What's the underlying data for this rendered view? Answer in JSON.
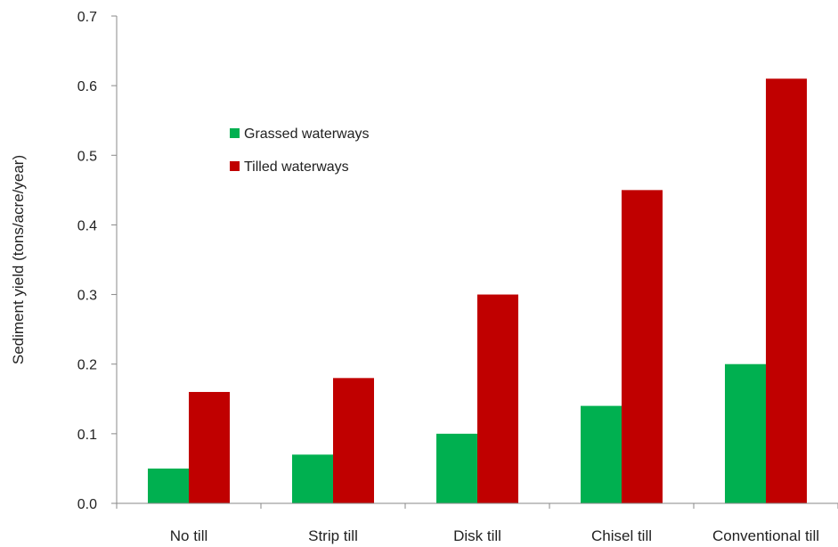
{
  "chart_data": {
    "type": "bar",
    "title": "",
    "xlabel": "",
    "ylabel": "Sediment yield (tons/acre/year)",
    "ylim": [
      0,
      0.7
    ],
    "yticks": [
      "0.0",
      "0.1",
      "0.2",
      "0.3",
      "0.4",
      "0.5",
      "0.6",
      "0.7"
    ],
    "grid": false,
    "legend_position": "top-left",
    "categories": [
      "No till",
      "Strip till",
      "Disk till",
      "Chisel till",
      "Conventional till"
    ],
    "series": [
      {
        "name": "Grassed waterways",
        "color": "#00b050",
        "values": [
          0.05,
          0.07,
          0.1,
          0.14,
          0.2
        ]
      },
      {
        "name": "Tilled waterways",
        "color": "#c00000",
        "values": [
          0.16,
          0.18,
          0.3,
          0.45,
          0.61
        ]
      }
    ]
  }
}
